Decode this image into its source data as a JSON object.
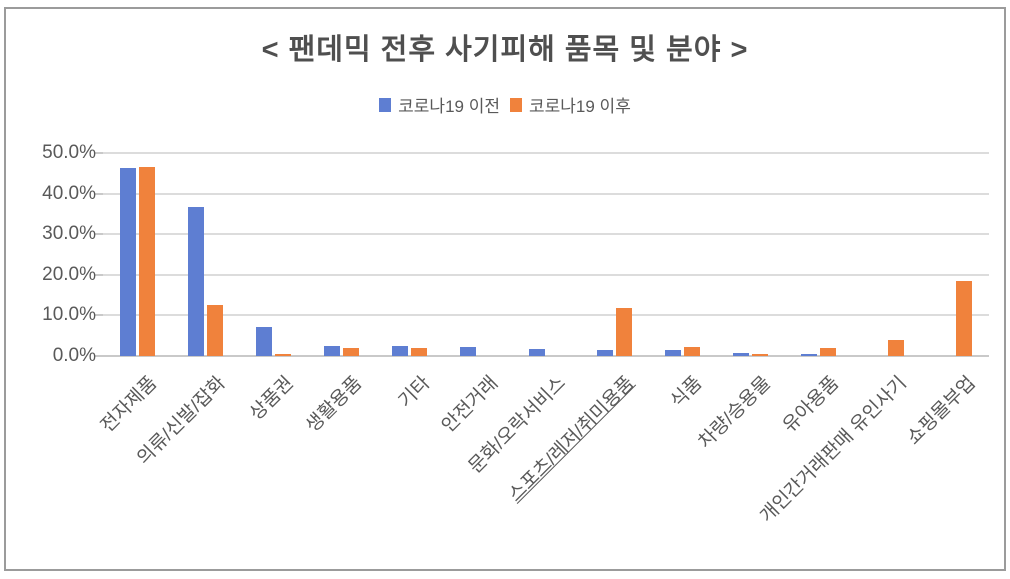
{
  "title": "< 팬데믹 전후 사기피해 품목 및 분야 >",
  "chart_data": {
    "type": "bar",
    "title": "< 팬데믹 전후 사기피해 품목 및 분야 >",
    "xlabel": "",
    "ylabel": "",
    "categories": [
      "전자제품",
      "의류/신발/잡화",
      "상품권",
      "생활용품",
      "기타",
      "안전거래",
      "문화/오락서비스",
      "스포츠/레저/취미용품",
      "식품",
      "차량/승용물",
      "유아용품",
      "개인간거래판매 유인사기",
      "쇼핑몰부업"
    ],
    "series": [
      {
        "name": "코로나19 이전",
        "color": "#5e7ed2",
        "values": [
          46.4,
          36.6,
          7.1,
          2.5,
          2.5,
          2.1,
          1.8,
          1.5,
          1.4,
          0.8,
          0.4,
          0,
          0
        ]
      },
      {
        "name": "코로나19 이후",
        "color": "#f0823c",
        "values": [
          46.5,
          12.5,
          0.6,
          2.0,
          2.0,
          0,
          0,
          11.9,
          2.1,
          0.5,
          2.0,
          3.9,
          18.4
        ]
      }
    ],
    "ylim": [
      0,
      50
    ],
    "yticks": [
      "50.0%",
      "40.0%",
      "30.0%",
      "20.0%",
      "10.0%",
      "0.0%"
    ],
    "ytick_values": [
      50,
      40,
      30,
      20,
      10,
      0
    ],
    "grid": true,
    "legend_position": "top-center",
    "underlined_category": "스포츠/레저/취미용품",
    "colors": {
      "gridline": "#dcdcdc",
      "axis_text": "#595959",
      "title_text": "#4f4f4f",
      "frame_border": "#9b9b9b"
    }
  }
}
